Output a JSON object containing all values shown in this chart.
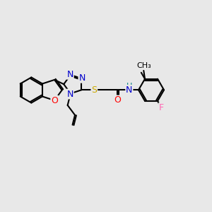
{
  "background_color": "#e8e8e8",
  "bond_color": "#000000",
  "atom_colors": {
    "N": "#0000cc",
    "O": "#ff0000",
    "S": "#ccaa00",
    "F": "#ff69b4",
    "H": "#008080",
    "C": "#000000"
  },
  "lw": 1.5,
  "font_size": 9
}
